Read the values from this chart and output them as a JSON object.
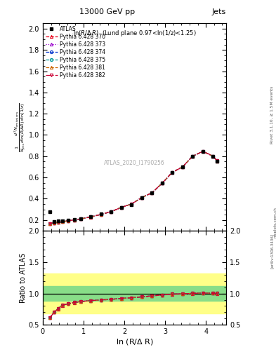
{
  "title_top": "13000 GeV pp",
  "title_right": "Jets",
  "panel_title": "ln(R/Δ R)  (Lund plane 0.97<ln(1/z)<1.25)",
  "watermark": "ATLAS_2020_I1790256",
  "right_label": "Rivet 3.1.10, ≥ 1.5M events",
  "arxiv_label": "[arXiv:1306.3436]",
  "mcplots_label": "mcplots.cern.ch",
  "x_data": [
    0.175,
    0.275,
    0.375,
    0.475,
    0.625,
    0.775,
    0.925,
    1.175,
    1.425,
    1.675,
    1.925,
    2.175,
    2.425,
    2.675,
    2.925,
    3.175,
    3.425,
    3.675,
    3.925,
    4.175,
    4.275
  ],
  "atlas_y": [
    0.275,
    0.185,
    0.195,
    0.19,
    0.2,
    0.205,
    0.215,
    0.23,
    0.255,
    0.275,
    0.315,
    0.345,
    0.41,
    0.455,
    0.545,
    0.65,
    0.7,
    0.8,
    0.845,
    0.8,
    0.755
  ],
  "pythia_370_y": [
    0.168,
    0.172,
    0.178,
    0.183,
    0.193,
    0.2,
    0.21,
    0.228,
    0.252,
    0.278,
    0.318,
    0.35,
    0.41,
    0.455,
    0.545,
    0.648,
    0.698,
    0.8,
    0.845,
    0.8,
    0.755
  ],
  "pythia_373_y": [
    0.168,
    0.172,
    0.178,
    0.183,
    0.194,
    0.201,
    0.211,
    0.229,
    0.253,
    0.279,
    0.319,
    0.351,
    0.411,
    0.456,
    0.546,
    0.649,
    0.699,
    0.801,
    0.846,
    0.801,
    0.756
  ],
  "pythia_374_y": [
    0.168,
    0.172,
    0.178,
    0.183,
    0.194,
    0.201,
    0.211,
    0.229,
    0.253,
    0.279,
    0.319,
    0.351,
    0.411,
    0.456,
    0.546,
    0.649,
    0.699,
    0.801,
    0.846,
    0.801,
    0.756
  ],
  "pythia_375_y": [
    0.168,
    0.172,
    0.178,
    0.183,
    0.194,
    0.201,
    0.211,
    0.229,
    0.253,
    0.279,
    0.319,
    0.351,
    0.411,
    0.456,
    0.546,
    0.649,
    0.699,
    0.801,
    0.846,
    0.801,
    0.756
  ],
  "pythia_381_y": [
    0.168,
    0.172,
    0.178,
    0.183,
    0.194,
    0.201,
    0.211,
    0.229,
    0.253,
    0.279,
    0.319,
    0.351,
    0.411,
    0.456,
    0.546,
    0.649,
    0.699,
    0.801,
    0.846,
    0.801,
    0.756
  ],
  "pythia_382_y": [
    0.168,
    0.172,
    0.178,
    0.183,
    0.194,
    0.201,
    0.211,
    0.229,
    0.253,
    0.279,
    0.319,
    0.351,
    0.411,
    0.456,
    0.546,
    0.649,
    0.699,
    0.801,
    0.846,
    0.801,
    0.756
  ],
  "ratio_370": [
    0.611,
    0.7,
    0.755,
    0.81,
    0.835,
    0.855,
    0.87,
    0.885,
    0.895,
    0.905,
    0.92,
    0.93,
    0.945,
    0.96,
    0.975,
    0.988,
    0.993,
    1.0,
    1.005,
    1.002,
    1.0
  ],
  "ratio_373": [
    0.613,
    0.702,
    0.757,
    0.812,
    0.837,
    0.857,
    0.872,
    0.887,
    0.897,
    0.907,
    0.922,
    0.932,
    0.947,
    0.962,
    0.977,
    0.99,
    0.995,
    1.002,
    1.007,
    1.004,
    1.002
  ],
  "ratio_374": [
    0.613,
    0.702,
    0.757,
    0.812,
    0.837,
    0.857,
    0.872,
    0.887,
    0.897,
    0.907,
    0.922,
    0.932,
    0.947,
    0.962,
    0.977,
    0.99,
    0.995,
    1.002,
    1.007,
    1.004,
    1.002
  ],
  "ratio_375": [
    0.613,
    0.702,
    0.757,
    0.812,
    0.837,
    0.857,
    0.872,
    0.887,
    0.897,
    0.907,
    0.922,
    0.932,
    0.947,
    0.962,
    0.977,
    0.99,
    0.995,
    1.002,
    1.007,
    1.004,
    1.002
  ],
  "ratio_381": [
    0.613,
    0.702,
    0.757,
    0.812,
    0.837,
    0.857,
    0.872,
    0.887,
    0.897,
    0.907,
    0.922,
    0.932,
    0.947,
    0.962,
    0.977,
    0.99,
    0.995,
    1.002,
    1.007,
    1.004,
    1.002
  ],
  "ratio_382": [
    0.613,
    0.702,
    0.757,
    0.812,
    0.837,
    0.857,
    0.872,
    0.887,
    0.897,
    0.907,
    0.922,
    0.932,
    0.947,
    0.962,
    0.977,
    0.99,
    0.995,
    1.002,
    1.007,
    1.004,
    1.002
  ],
  "green_band_lo": 0.88,
  "green_band_hi": 1.12,
  "yellow_band_lo": 0.68,
  "yellow_band_hi": 1.32,
  "color_370": "#e8001a",
  "color_373": "#9900cc",
  "color_374": "#0033cc",
  "color_375": "#009999",
  "color_381": "#cc6600",
  "color_382": "#cc0033",
  "xlim": [
    0.0,
    4.5
  ],
  "ylim_main": [
    0.1,
    2.05
  ],
  "ylim_ratio": [
    0.5,
    2.0
  ],
  "yticks_main": [
    0.2,
    0.4,
    0.6,
    0.8,
    1.0,
    1.2,
    1.4,
    1.6,
    1.8,
    2.0
  ],
  "yticks_ratio": [
    0.5,
    1.0,
    1.5,
    2.0
  ],
  "xticks": [
    0,
    1,
    2,
    3,
    4
  ]
}
